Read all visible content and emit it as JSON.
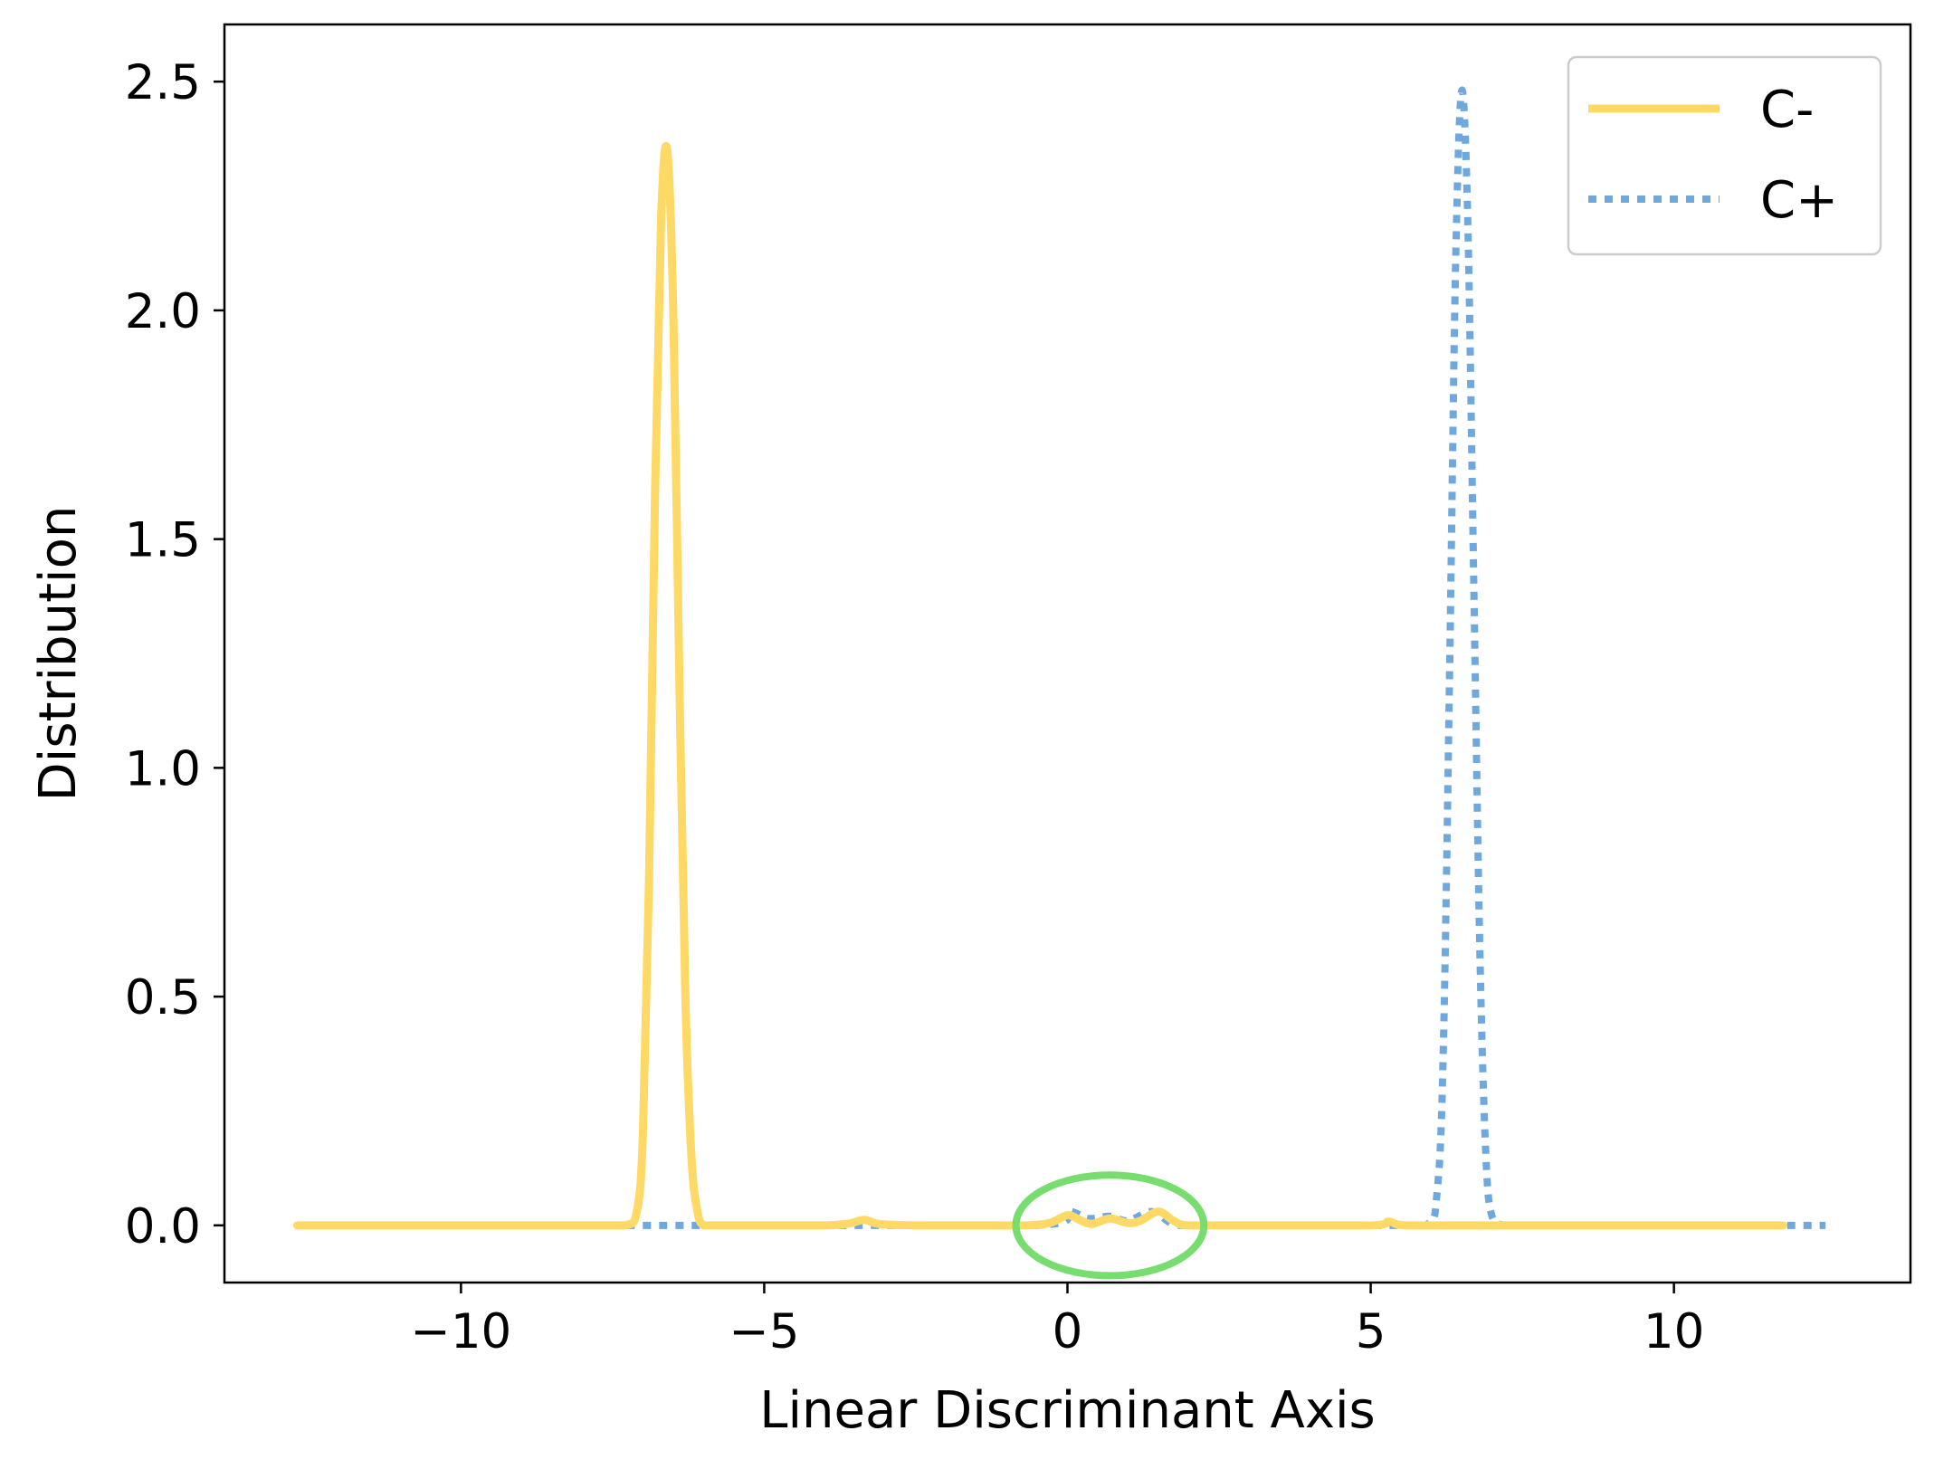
{
  "chart_data": {
    "type": "line",
    "xlabel": "Linear Discriminant Axis",
    "ylabel": "Distribution",
    "xlim": [
      -13.9,
      13.9
    ],
    "ylim": [
      -0.125,
      2.625
    ],
    "xticks": [
      -10,
      -5,
      0,
      5,
      10
    ],
    "xtick_labels": [
      "−10",
      "−5",
      "0",
      "5",
      "10"
    ],
    "yticks": [
      0.0,
      0.5,
      1.0,
      1.5,
      2.0,
      2.5
    ],
    "ytick_labels": [
      "0.0",
      "0.5",
      "1.0",
      "1.5",
      "2.0",
      "2.5"
    ],
    "grid": false,
    "legend_position": "top-right",
    "series": [
      {
        "name": "C-",
        "color": "#FFD966",
        "style": "solid",
        "x": [
          -12.7,
          -8.0,
          -7.3,
          -7.1,
          -7.0,
          -6.9,
          -6.8,
          -6.7,
          -6.6,
          -6.5,
          -6.4,
          -6.3,
          -6.2,
          -6.1,
          -6.0,
          -5.8,
          -5.0,
          -4.0,
          -3.6,
          -3.35,
          -3.1,
          -2.5,
          -1.5,
          -0.7,
          -0.3,
          0.0,
          0.2,
          0.4,
          0.7,
          1.0,
          1.2,
          1.5,
          1.75,
          2.0,
          3.0,
          5.0,
          5.3,
          5.6,
          7.0,
          9.0,
          11.8
        ],
        "values": [
          0.0,
          0.0,
          0.0,
          0.03,
          0.2,
          0.75,
          1.6,
          2.2,
          2.35,
          2.0,
          1.2,
          0.5,
          0.15,
          0.03,
          0.0,
          0.0,
          0.0,
          0.0,
          0.004,
          0.012,
          0.003,
          0.0,
          0.0,
          0.0,
          0.005,
          0.022,
          0.012,
          0.003,
          0.015,
          0.005,
          0.01,
          0.03,
          0.01,
          0.0,
          0.0,
          0.0,
          0.008,
          0.0,
          0.0,
          0.0,
          0.0
        ]
      },
      {
        "name": "C+",
        "color": "#6FA8DC",
        "style": "dotted",
        "x": [
          -11.3,
          -5.0,
          -0.5,
          0.0,
          0.35,
          0.7,
          1.0,
          1.4,
          1.8,
          2.5,
          5.0,
          5.9,
          6.1,
          6.2,
          6.3,
          6.4,
          6.5,
          6.6,
          6.7,
          6.8,
          6.9,
          7.0,
          7.2,
          7.5,
          12.5
        ],
        "values": [
          0.0,
          0.0,
          0.0,
          0.03,
          0.015,
          0.02,
          0.01,
          0.03,
          0.0,
          0.0,
          0.0,
          0.0,
          0.08,
          0.4,
          1.2,
          2.1,
          2.48,
          2.2,
          1.4,
          0.6,
          0.15,
          0.02,
          0.0,
          0.0,
          0.0
        ]
      }
    ],
    "annotations": [
      {
        "type": "ellipse",
        "color": "#77DD6F",
        "cx": 0.7,
        "cy": 0.0,
        "rx": 1.55,
        "ry": 0.11
      }
    ]
  }
}
